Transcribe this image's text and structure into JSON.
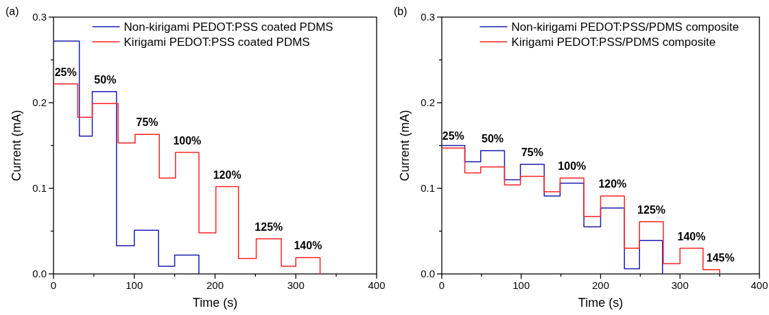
{
  "chart_data": [
    {
      "type": "step",
      "title": "(a)",
      "xlabel": "Time (s)",
      "ylabel": "Current (mA)",
      "xlim": [
        0,
        400
      ],
      "ylim": [
        0,
        0.3
      ],
      "xticks": [
        0,
        {
          "value": 50,
          "label": null
        },
        100,
        {
          "value": 150,
          "label": null
        },
        200,
        {
          "value": 250,
          "label": null
        },
        300,
        {
          "value": 350,
          "label": null
        },
        400
      ],
      "yticks": [
        {
          "value": 0,
          "label": "0.0"
        },
        {
          "value": 0.05,
          "label": null
        },
        0.1,
        {
          "value": 0.15,
          "label": null
        },
        0.2,
        {
          "value": 0.25,
          "label": null
        },
        0.3
      ],
      "legend": "top right",
      "grid": false,
      "line_style": "solid",
      "marker": "none",
      "series": [
        {
          "name": "Non-kirigami PEDOT:PSS coated PDMS",
          "color": "#1a1ab0",
          "x": [
            0,
            32,
            48,
            78,
            100,
            130,
            150,
            180
          ],
          "values": [
            0.272,
            0.161,
            0.213,
            0.033,
            0.051,
            0.009,
            0.022,
            0
          ]
        },
        {
          "name": "Kirigami PEDOT:PSS coated PDMS",
          "color": "#ff2020",
          "x": [
            0,
            30,
            48,
            80,
            101,
            131,
            151,
            180,
            201,
            229,
            251,
            282,
            300,
            330
          ],
          "values": [
            0.222,
            0.183,
            0.199,
            0.153,
            0.163,
            0.112,
            0.142,
            0.048,
            0.102,
            0.018,
            0.041,
            0.009,
            0.019,
            0
          ]
        }
      ],
      "annotations": [
        "25%",
        "50%",
        "75%",
        "100%",
        "120%",
        "125%",
        "140%"
      ]
    },
    {
      "type": "step",
      "title": "(b)",
      "xlabel": "Time (s)",
      "ylabel": "Current (mA)",
      "xlim": [
        0,
        400
      ],
      "ylim": [
        0,
        0.3
      ],
      "xticks": [
        0,
        {
          "value": 50,
          "label": null
        },
        100,
        {
          "value": 150,
          "label": null
        },
        200,
        {
          "value": 250,
          "label": null
        },
        300,
        {
          "value": 350,
          "label": null
        },
        400
      ],
      "yticks": [
        {
          "value": 0,
          "label": "0.0"
        },
        {
          "value": 0.05,
          "label": null
        },
        0.1,
        {
          "value": 0.15,
          "label": null
        },
        0.2,
        {
          "value": 0.25,
          "label": null
        },
        0.3
      ],
      "legend": "top right",
      "grid": false,
      "line_style": "solid",
      "marker": "none",
      "series": [
        {
          "name": "Non-kirigami PEDOT:PSS/PDMS composite",
          "color": "#1a1ab0",
          "x": [
            0,
            29,
            49,
            79,
            99,
            129,
            149,
            179,
            200,
            230,
            249,
            278
          ],
          "values": [
            0.15,
            0.131,
            0.144,
            0.11,
            0.128,
            0.091,
            0.106,
            0.055,
            0.077,
            0.006,
            0.039,
            0
          ]
        },
        {
          "name": "Kirigami PEDOT:PSS/PDMS composite",
          "color": "#ff2020",
          "x": [
            0,
            29,
            49,
            79,
            99,
            129,
            149,
            179,
            200,
            230,
            249,
            279,
            300,
            329,
            350
          ],
          "values": [
            0.147,
            0.118,
            0.125,
            0.104,
            0.114,
            0.096,
            0.112,
            0.067,
            0.091,
            0.03,
            0.061,
            0.012,
            0.03,
            0.005,
            0
          ]
        }
      ],
      "annotations": [
        "25%",
        "50%",
        "75%",
        "100%",
        "120%",
        "125%",
        "140%",
        "145%"
      ]
    }
  ]
}
